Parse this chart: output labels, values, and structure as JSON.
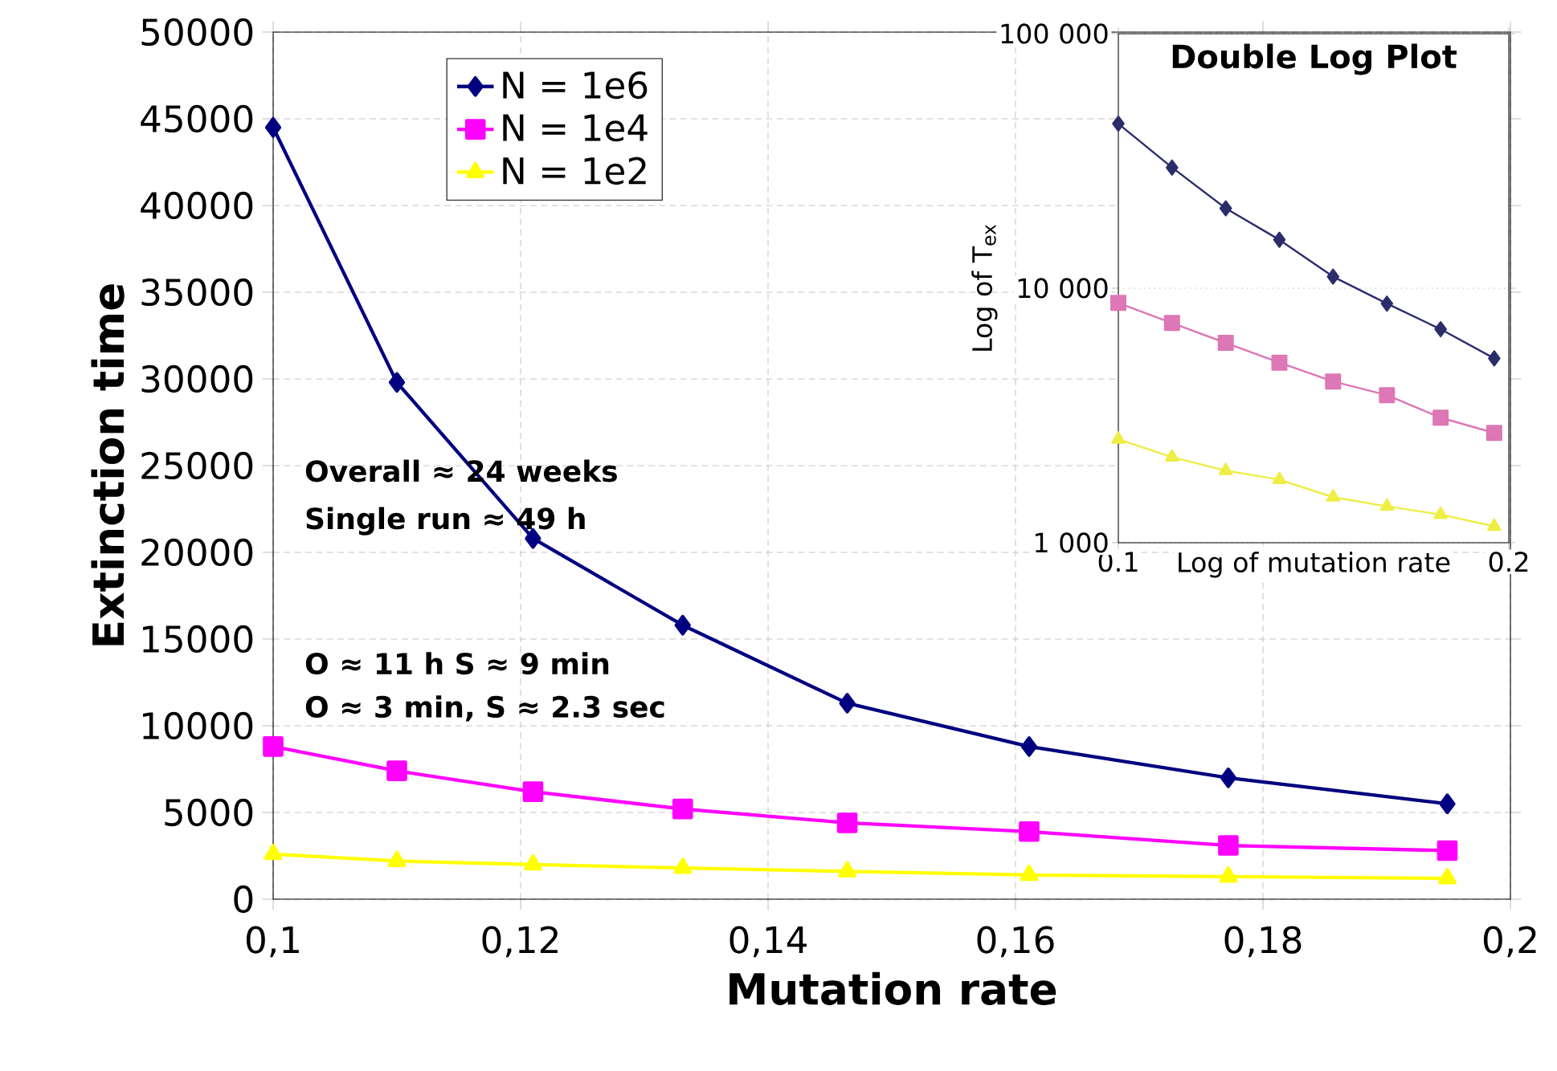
{
  "chart_data": [
    {
      "type": "line",
      "xlabel": "Mutation rate",
      "ylabel": "Extinction time",
      "x": [
        0.1,
        0.11,
        0.121,
        0.1331,
        0.1464,
        0.1611,
        0.1772,
        0.1949
      ],
      "xlim": [
        0.1,
        0.2
      ],
      "xticks": [
        {
          "value": 0.1,
          "label": "0,1"
        },
        {
          "value": 0.12,
          "label": "0,12"
        },
        {
          "value": 0.14,
          "label": "0,14"
        },
        {
          "value": 0.16,
          "label": "0,16"
        },
        {
          "value": 0.18,
          "label": "0,18"
        },
        {
          "value": 0.2,
          "label": "0,2"
        }
      ],
      "ylim": [
        0,
        50000
      ],
      "yticks": [
        0,
        5000,
        10000,
        15000,
        20000,
        25000,
        30000,
        35000,
        40000,
        45000,
        50000
      ],
      "grid": true,
      "legend": "top left",
      "annotations": [
        "Overall ≈ 24 weeks",
        "Single run ≈ 49 h",
        "O ≈ 11 h  S ≈ 9 min",
        "O ≈ 3 min, S ≈ 2.3 sec"
      ],
      "series": [
        {
          "name": "N = 1e6",
          "color": "#000080",
          "marker": "diamond",
          "values": [
            44500,
            29800,
            20800,
            15800,
            11300,
            8800,
            7000,
            5500
          ]
        },
        {
          "name": "N = 1e4",
          "color": "#ff00ff",
          "marker": "square",
          "values": [
            8800,
            7400,
            6200,
            5200,
            4400,
            3900,
            3100,
            2800
          ]
        },
        {
          "name": "N = 1e2",
          "color": "#ffff00",
          "marker": "triangle",
          "values": [
            2600,
            2200,
            2000,
            1800,
            1600,
            1400,
            1300,
            1200
          ]
        }
      ]
    },
    {
      "type": "line",
      "title": "Double Log Plot",
      "xlabel": "Log of mutation rate",
      "ylabel": "Log of T$_{ex}$",
      "log": "xy",
      "x": [
        0.1,
        0.11,
        0.121,
        0.1331,
        0.1464,
        0.1611,
        0.1772,
        0.1949
      ],
      "xlim": [
        0.1,
        0.2
      ],
      "xticks": [
        {
          "value": 0.1,
          "label": "0.1"
        },
        {
          "value": 0.2,
          "label": "0.2"
        }
      ],
      "ylim": [
        1000,
        100000
      ],
      "yticks": [
        {
          "value": 1000,
          "label": "1 000"
        },
        {
          "value": 10000,
          "label": "10 000"
        },
        {
          "value": 100000,
          "label": "100 000"
        }
      ],
      "grid": "y",
      "series": [
        {
          "color": "#2b2d6b",
          "marker": "diamond",
          "values": [
            44300,
            29800,
            20600,
            15500,
            11100,
            8700,
            6900,
            5300
          ]
        },
        {
          "color": "#dd77b5",
          "marker": "square",
          "values": [
            8750,
            7300,
            6100,
            5100,
            4300,
            3800,
            3100,
            2700
          ]
        },
        {
          "color": "#eeee44",
          "marker": "triangle",
          "values": [
            2550,
            2170,
            1920,
            1770,
            1510,
            1390,
            1290,
            1160
          ]
        }
      ]
    }
  ]
}
